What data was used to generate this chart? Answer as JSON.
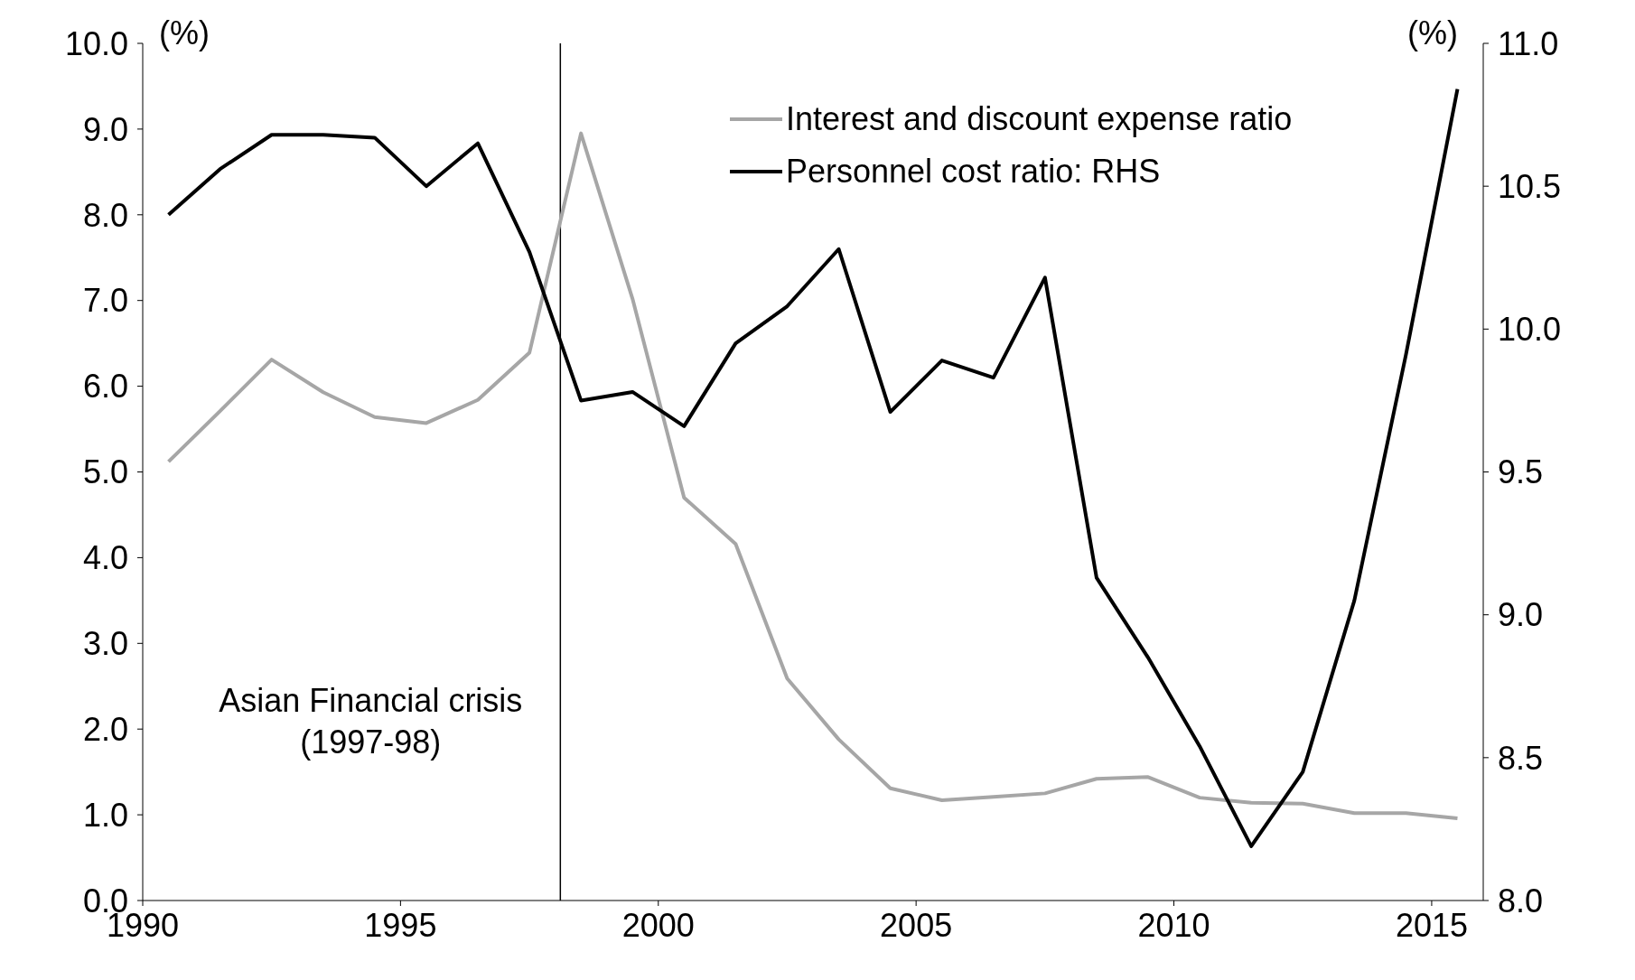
{
  "chart_data": {
    "type": "line",
    "ylabel": "(%)",
    "y2label": "(%)",
    "x": [
      1990.5,
      1991.5,
      1992.5,
      1993.5,
      1994.5,
      1995.5,
      1996.5,
      1997.5,
      1998.5,
      1999.5,
      2000.5,
      2001.5,
      2002.5,
      2003.5,
      2004.5,
      2005.5,
      2006.5,
      2007.5,
      2008.5,
      2009.5,
      2010.5,
      2011.5,
      2012.5,
      2013.5,
      2014.5,
      2015.5
    ],
    "series": [
      {
        "name": "Interest and discount expense ratio",
        "color": "#a6a6a6",
        "values": [
          5.12,
          5.71,
          6.31,
          5.93,
          5.64,
          5.57,
          5.84,
          6.39,
          8.95,
          7.02,
          4.7,
          4.16,
          2.59,
          1.88,
          1.31,
          1.17,
          1.21,
          1.25,
          1.42,
          1.44,
          1.2,
          1.14,
          1.13,
          1.02,
          1.02,
          0.96
        ]
      },
      {
        "name": "Personnel cost ratio: RHS",
        "color": "#000000",
        "axis": "y2",
        "values": [
          10.4,
          10.56,
          10.68,
          10.68,
          10.67,
          10.5,
          10.65,
          10.27,
          9.75,
          9.78,
          9.66,
          9.95,
          10.08,
          10.28,
          9.71,
          9.89,
          9.83,
          10.18,
          9.13,
          8.85,
          8.54,
          8.19,
          8.45,
          9.05,
          9.91,
          10.84
        ]
      }
    ],
    "xlim": [
      1990,
      2016
    ],
    "xticks": [
      1990,
      1995,
      2000,
      2005,
      2010,
      2015
    ],
    "ylim": [
      0,
      10
    ],
    "yticks": [
      {
        "value": 0,
        "label": "0.0"
      },
      {
        "value": 1,
        "label": "1.0"
      },
      {
        "value": 2,
        "label": "2.0"
      },
      {
        "value": 3,
        "label": "3.0"
      },
      {
        "value": 4,
        "label": "4.0"
      },
      {
        "value": 5,
        "label": "5.0"
      },
      {
        "value": 6,
        "label": "6.0"
      },
      {
        "value": 7,
        "label": "7.0"
      },
      {
        "value": 8,
        "label": "8.0"
      },
      {
        "value": 9,
        "label": "9.0"
      },
      {
        "value": 10,
        "label": "10.0"
      }
    ],
    "y2lim": [
      8,
      11
    ],
    "y2ticks": [
      {
        "value": 8,
        "label": "8.0"
      },
      {
        "value": 8.5,
        "label": "8.5"
      },
      {
        "value": 9,
        "label": "9.0"
      },
      {
        "value": 9.5,
        "label": "9.5"
      },
      {
        "value": 10,
        "label": "10.0"
      },
      {
        "value": 10.5,
        "label": "10.5"
      },
      {
        "value": 11,
        "label": "11.0"
      }
    ],
    "ref_lines": [
      {
        "axis": "x",
        "value": 1998.1,
        "label": "Asian Financial crisis\n(1997-98)",
        "color": "#000000"
      }
    ],
    "grid": false,
    "legend": "top right",
    "marker": "none",
    "line_style": "solid"
  }
}
